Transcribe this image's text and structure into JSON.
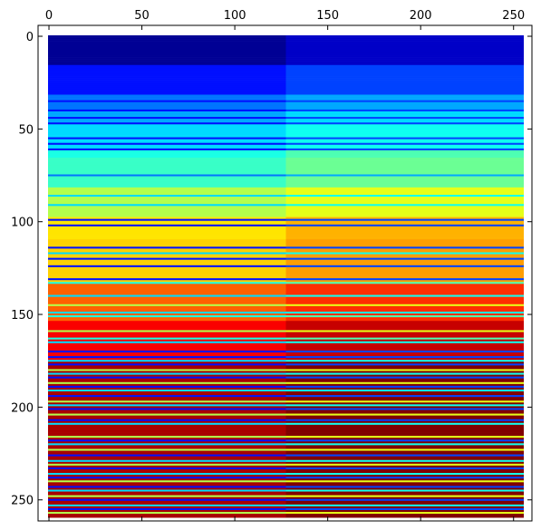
{
  "chart_data": {
    "type": "heatmap",
    "title": "",
    "xlabel": "",
    "ylabel": "",
    "colormap": "jet",
    "x_ticks": [
      0,
      50,
      100,
      150,
      200,
      250
    ],
    "y_ticks": [
      0,
      50,
      100,
      150,
      200,
      250
    ],
    "x_tick_position": "top",
    "y_axis_inverted": true,
    "xlim": [
      -0.5,
      255.5
    ],
    "ylim": [
      255.5,
      -0.5
    ],
    "grid": false,
    "shape": [
      256,
      256
    ],
    "columns_split_at": 128,
    "value_range": [
      0,
      1
    ],
    "row_values_left_half": [
      0.02,
      0.02,
      0.02,
      0.02,
      0.02,
      0.02,
      0.02,
      0.02,
      0.02,
      0.02,
      0.02,
      0.02,
      0.02,
      0.02,
      0.02,
      0.02,
      0.14,
      0.14,
      0.14,
      0.14,
      0.14,
      0.14,
      0.14,
      0.14,
      0.14,
      0.14,
      0.14,
      0.14,
      0.14,
      0.14,
      0.14,
      0.14,
      0.24,
      0.24,
      0.24,
      0.14,
      0.24,
      0.24,
      0.24,
      0.24,
      0.14,
      0.29,
      0.29,
      0.29,
      0.14,
      0.29,
      0.29,
      0.14,
      0.34,
      0.34,
      0.34,
      0.34,
      0.34,
      0.34,
      0.34,
      0.14,
      0.34,
      0.34,
      0.14,
      0.34,
      0.34,
      0.14,
      0.4,
      0.4,
      0.4,
      0.4,
      0.43,
      0.43,
      0.43,
      0.43,
      0.43,
      0.43,
      0.43,
      0.43,
      0.43,
      0.24,
      0.43,
      0.43,
      0.43,
      0.43,
      0.43,
      0.43,
      0.55,
      0.55,
      0.55,
      0.55,
      0.34,
      0.55,
      0.55,
      0.55,
      0.55,
      0.34,
      0.55,
      0.55,
      0.55,
      0.55,
      0.55,
      0.55,
      0.65,
      0.14,
      0.65,
      0.65,
      0.14,
      0.65,
      0.65,
      0.65,
      0.65,
      0.65,
      0.65,
      0.65,
      0.67,
      0.67,
      0.67,
      0.67,
      0.14,
      0.67,
      0.67,
      0.34,
      0.67,
      0.67,
      0.14,
      0.67,
      0.67,
      0.67,
      0.14,
      0.67,
      0.67,
      0.67,
      0.67,
      0.67,
      0.67,
      0.14,
      0.67,
      0.4,
      0.78,
      0.78,
      0.78,
      0.78,
      0.78,
      0.78,
      0.34,
      0.78,
      0.78,
      0.78,
      0.78,
      0.55,
      0.78,
      0.78,
      0.78,
      0.34,
      0.78,
      0.4,
      0.78,
      0.78,
      0.88,
      0.88,
      0.88,
      0.88,
      0.88,
      0.55,
      0.88,
      0.88,
      0.88,
      0.4,
      0.88,
      0.34,
      0.88,
      0.88,
      0.88,
      0.88,
      0.14,
      0.88,
      0.88,
      0.14,
      0.88,
      0.34,
      0.96,
      0.14,
      0.96,
      0.96,
      0.55,
      0.96,
      0.34,
      0.96,
      0.14,
      0.96,
      0.96,
      0.55,
      0.96,
      0.14,
      0.96,
      0.34,
      0.96,
      0.96,
      0.14,
      0.96,
      0.96,
      0.55,
      0.96,
      0.34,
      0.96,
      0.14,
      0.96,
      0.96,
      0.55,
      0.96,
      0.96,
      0.14,
      0.96,
      0.34,
      0.96,
      0.96,
      0.96,
      0.96,
      0.96,
      0.96,
      0.55,
      0.96,
      0.14,
      0.96,
      0.34,
      0.96,
      0.96,
      0.55,
      0.96,
      0.96,
      0.14,
      0.96,
      0.96,
      0.34,
      0.96,
      0.55,
      0.96,
      0.14,
      0.96,
      0.96,
      0.34,
      0.96,
      0.14,
      0.96,
      0.55,
      0.96,
      0.96,
      0.14,
      0.96,
      0.34,
      0.96,
      0.96,
      0.55,
      0.96,
      0.14,
      0.96,
      0.96,
      0.34,
      0.96,
      0.14,
      0.96,
      0.55,
      0.96,
      0.96
    ],
    "right_half_offset": 0.05
  }
}
